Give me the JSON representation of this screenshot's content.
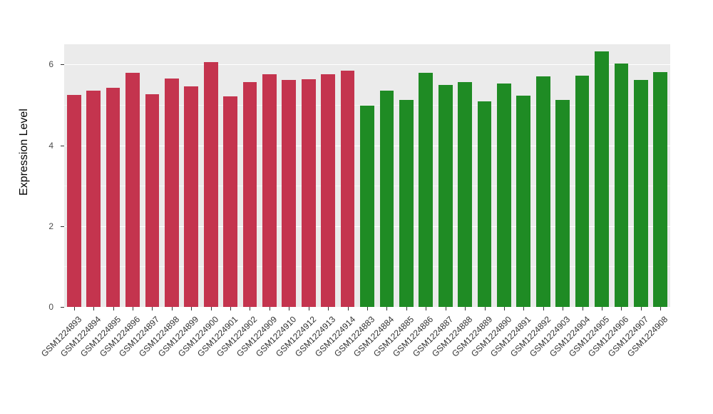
{
  "chart_data": {
    "type": "bar",
    "title": "",
    "xlabel": "",
    "ylabel": "Expression Level",
    "ylim": [
      0,
      6.5
    ],
    "yticks": [
      0,
      2,
      4,
      6
    ],
    "minor_gridlines": [
      1,
      3,
      5
    ],
    "grid": "on",
    "legend_position": "none",
    "panel_background": "#EBEBEB",
    "gridline_color": "#FFFFFF",
    "categories": [
      "GSM1224893",
      "GSM1224894",
      "GSM1224895",
      "GSM1224896",
      "GSM1224897",
      "GSM1224898",
      "GSM1224899",
      "GSM1224900",
      "GSM1224901",
      "GSM1224902",
      "GSM1224909",
      "GSM1224910",
      "GSM1224912",
      "GSM1224913",
      "GSM1224914",
      "GSM1224883",
      "GSM1224884",
      "GSM1224885",
      "GSM1224886",
      "GSM1224887",
      "GSM1224888",
      "GSM1224889",
      "GSM1224890",
      "GSM1224891",
      "GSM1224892",
      "GSM1224903",
      "GSM1224904",
      "GSM1224905",
      "GSM1224906",
      "GSM1224907",
      "GSM1224908"
    ],
    "values": [
      5.25,
      5.35,
      5.42,
      5.8,
      5.27,
      5.66,
      5.46,
      6.05,
      5.21,
      5.56,
      5.75,
      5.61,
      5.63,
      5.75,
      5.85,
      4.98,
      5.35,
      5.13,
      5.8,
      5.49,
      5.57,
      5.08,
      5.52,
      5.22,
      5.7,
      5.13,
      5.72,
      6.32,
      6.02,
      5.61,
      5.82
    ],
    "groups": [
      "group1",
      "group1",
      "group1",
      "group1",
      "group1",
      "group1",
      "group1",
      "group1",
      "group1",
      "group1",
      "group1",
      "group1",
      "group1",
      "group1",
      "group1",
      "group2",
      "group2",
      "group2",
      "group2",
      "group2",
      "group2",
      "group2",
      "group2",
      "group2",
      "group2",
      "group2",
      "group2",
      "group2",
      "group2",
      "group2",
      "group2"
    ],
    "group_colors": {
      "group1": "#C4344E",
      "group2": "#1F8B24"
    }
  }
}
